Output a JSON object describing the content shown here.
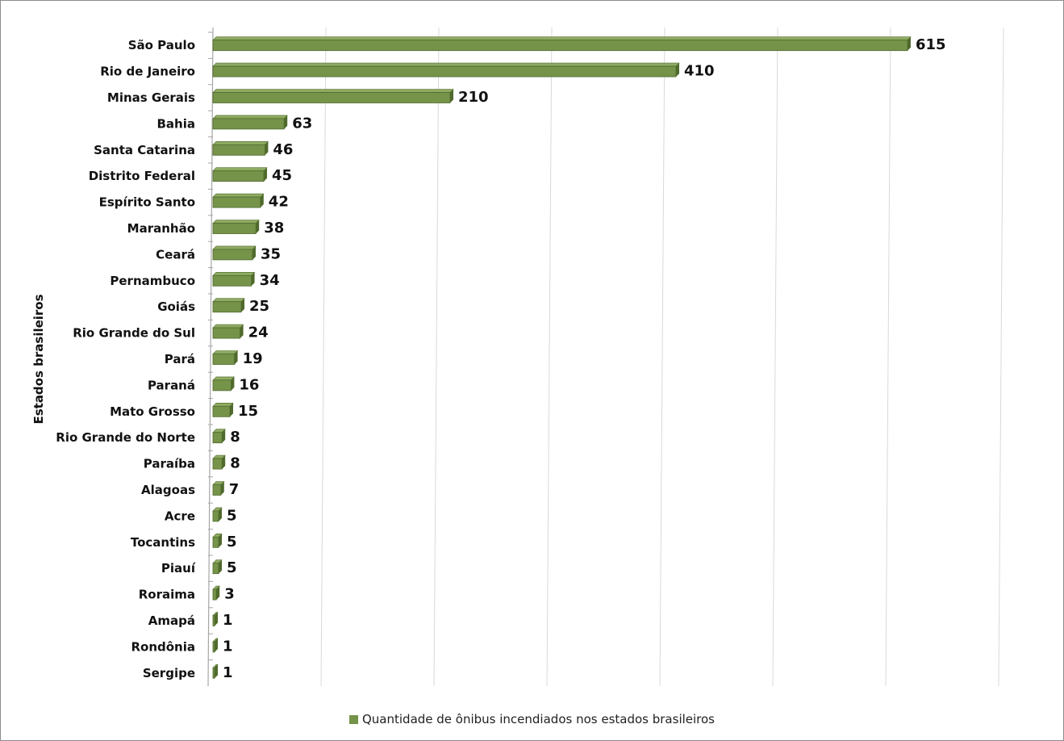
{
  "chart_data": {
    "type": "bar",
    "orientation": "horizontal",
    "ylabel": "Estados brasileiros",
    "xlim": [
      0,
      700
    ],
    "grid": true,
    "legend_position": "bottom",
    "categories": [
      "São Paulo",
      "Rio de Janeiro",
      "Minas Gerais",
      "Bahia",
      "Santa Catarina",
      "Distrito Federal",
      "Espírito Santo",
      "Maranhão",
      "Ceará",
      "Pernambuco",
      "Goiás",
      "Rio Grande do Sul",
      "Pará",
      "Paraná",
      "Mato Grosso",
      "Rio Grande do Norte",
      "Paraíba",
      "Alagoas",
      "Acre",
      "Tocantins",
      "Piauí",
      "Roraima",
      "Amapá",
      "Rondônia",
      "Sergipe"
    ],
    "series": [
      {
        "name": "Quantidade de ônibus incendiados nos estados brasileiros",
        "values": [
          615,
          410,
          210,
          63,
          46,
          45,
          42,
          38,
          35,
          34,
          25,
          24,
          19,
          16,
          15,
          8,
          8,
          7,
          5,
          5,
          5,
          3,
          1,
          1,
          1
        ],
        "color": "#76934a"
      }
    ]
  }
}
